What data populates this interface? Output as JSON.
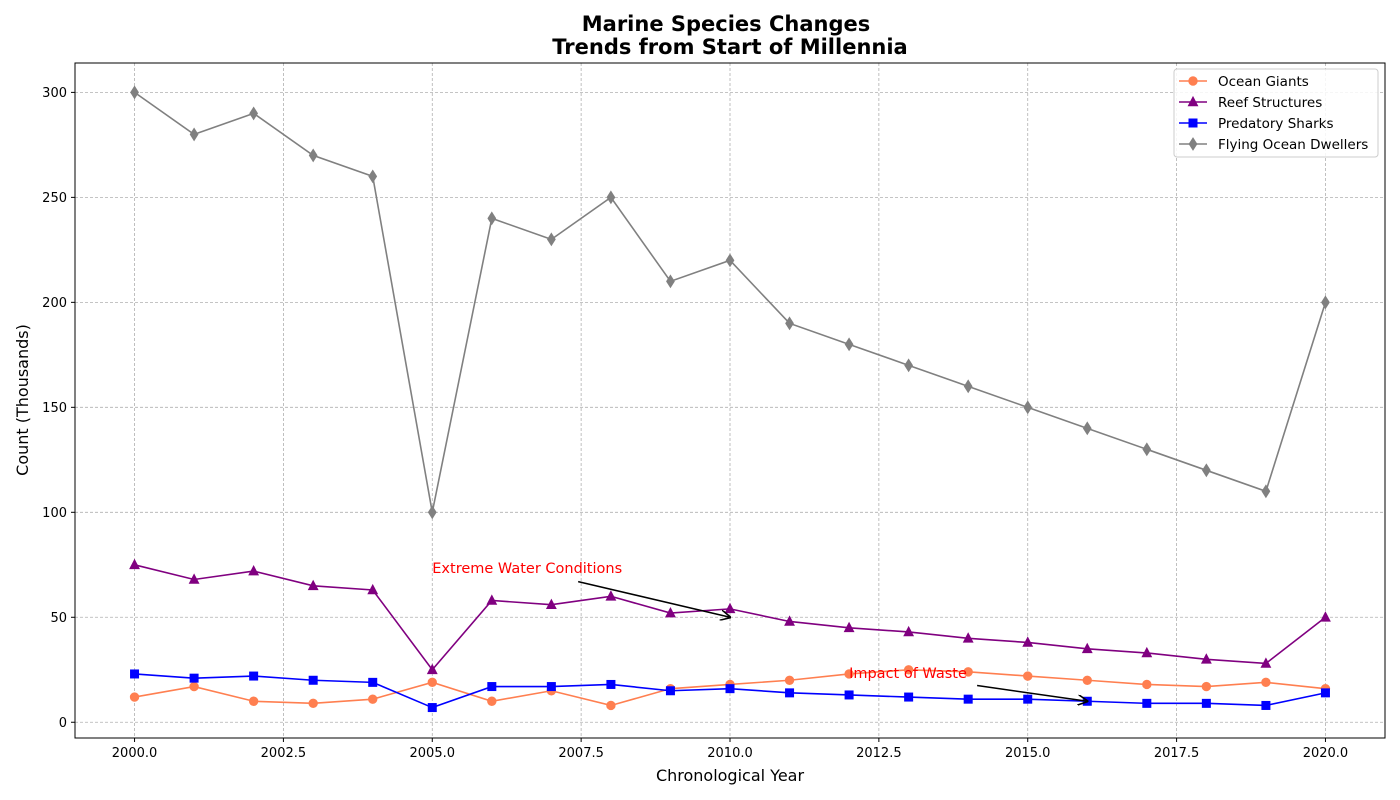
{
  "chart_data": {
    "type": "line",
    "title_lines": [
      "Marine Species Changes",
      "Trends from Start of Millennia"
    ],
    "xlabel": "Chronological Year",
    "ylabel": "Count (Thousands)",
    "xlim": [
      1999.0,
      2021.0
    ],
    "ylim": [
      -7.5,
      314
    ],
    "x_ticks": [
      2000.0,
      2002.5,
      2005.0,
      2007.5,
      2010.0,
      2012.5,
      2015.0,
      2017.5,
      2020.0
    ],
    "x_tick_labels": [
      "2000.0",
      "2002.5",
      "2005.0",
      "2007.5",
      "2010.0",
      "2012.5",
      "2015.0",
      "2017.5",
      "2020.0"
    ],
    "y_ticks": [
      0,
      50,
      100,
      150,
      200,
      250,
      300
    ],
    "y_tick_labels": [
      "0",
      "50",
      "100",
      "150",
      "200",
      "250",
      "300"
    ],
    "grid": true,
    "legend_position": "top-right",
    "x": [
      2000,
      2001,
      2002,
      2003,
      2004,
      2005,
      2006,
      2007,
      2008,
      2009,
      2010,
      2011,
      2012,
      2013,
      2014,
      2015,
      2016,
      2017,
      2018,
      2019,
      2020
    ],
    "series": [
      {
        "name": "Ocean Giants",
        "color": "#ff7f50",
        "marker": "circle",
        "values": [
          12,
          17,
          10,
          9,
          11,
          19,
          10,
          15,
          8,
          16,
          18,
          20,
          23,
          25,
          24,
          22,
          20,
          18,
          17,
          19,
          16
        ]
      },
      {
        "name": "Reef Structures",
        "color": "#800080",
        "marker": "triangle",
        "values": [
          75,
          68,
          72,
          65,
          63,
          25,
          58,
          56,
          60,
          52,
          54,
          48,
          45,
          43,
          40,
          38,
          35,
          33,
          30,
          28,
          50
        ]
      },
      {
        "name": "Predatory Sharks",
        "color": "#0000ff",
        "marker": "square",
        "values": [
          23,
          21,
          22,
          20,
          19,
          7,
          17,
          17,
          18,
          15,
          16,
          14,
          13,
          12,
          11,
          11,
          10,
          9,
          9,
          8,
          14
        ]
      },
      {
        "name": "Flying Ocean Dwellers",
        "color": "#808080",
        "marker": "diamond",
        "values": [
          300,
          280,
          290,
          270,
          260,
          100,
          240,
          230,
          250,
          210,
          220,
          190,
          180,
          170,
          160,
          150,
          140,
          130,
          120,
          110,
          200
        ]
      }
    ],
    "annotations": [
      {
        "text": "Extreme Water Conditions",
        "text_at": [
          2005.0,
          71
        ],
        "arrow_from": [
          2007.45,
          67
        ],
        "arrow_to": [
          2010.0,
          50
        ],
        "color": "#ff0000"
      },
      {
        "text": "Impact of Waste",
        "text_at": [
          2012.0,
          21
        ],
        "arrow_from": [
          2014.15,
          17.5
        ],
        "arrow_to": [
          2016.0,
          10
        ],
        "color": "#ff0000"
      }
    ]
  }
}
